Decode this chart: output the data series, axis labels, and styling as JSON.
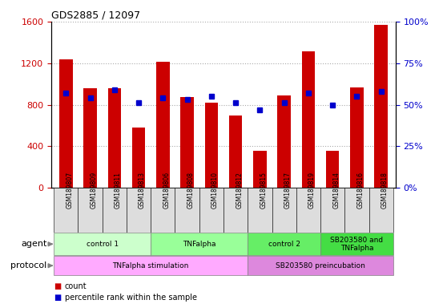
{
  "title": "GDS2885 / 12097",
  "samples": [
    "GSM189807",
    "GSM189809",
    "GSM189811",
    "GSM189813",
    "GSM189806",
    "GSM189808",
    "GSM189810",
    "GSM189812",
    "GSM189815",
    "GSM189817",
    "GSM189819",
    "GSM189814",
    "GSM189816",
    "GSM189818"
  ],
  "counts": [
    1240,
    960,
    960,
    580,
    1210,
    870,
    820,
    700,
    360,
    890,
    1310,
    360,
    970,
    1570
  ],
  "percentiles": [
    57,
    54,
    59,
    51,
    54,
    53,
    55,
    51,
    47,
    51,
    57,
    50,
    55,
    58
  ],
  "ylim_left": [
    0,
    1600
  ],
  "ylim_right": [
    0,
    100
  ],
  "yticks_left": [
    0,
    400,
    800,
    1200,
    1600
  ],
  "yticks_right": [
    0,
    25,
    50,
    75,
    100
  ],
  "agent_groups": [
    {
      "label": "control 1",
      "start": 0,
      "end": 3,
      "color": "#ccffcc"
    },
    {
      "label": "TNFalpha",
      "start": 4,
      "end": 7,
      "color": "#99ff99"
    },
    {
      "label": "control 2",
      "start": 8,
      "end": 10,
      "color": "#66ee66"
    },
    {
      "label": "SB203580 and\nTNFalpha",
      "start": 11,
      "end": 13,
      "color": "#44dd44"
    }
  ],
  "protocol_groups": [
    {
      "label": "TNFalpha stimulation",
      "start": 0,
      "end": 7,
      "color": "#ffaaff"
    },
    {
      "label": "SB203580 preincubation",
      "start": 8,
      "end": 13,
      "color": "#dd88dd"
    }
  ],
  "bar_color": "#cc0000",
  "dot_color": "#0000cc",
  "grid_color": "#aaaaaa",
  "background_color": "#ffffff",
  "tick_color_left": "#cc0000",
  "tick_color_right": "#0000cc",
  "sample_bg_color": "#dddddd",
  "legend_items": [
    {
      "color": "#cc0000",
      "label": "count"
    },
    {
      "color": "#0000cc",
      "label": "percentile rank within the sample"
    }
  ]
}
